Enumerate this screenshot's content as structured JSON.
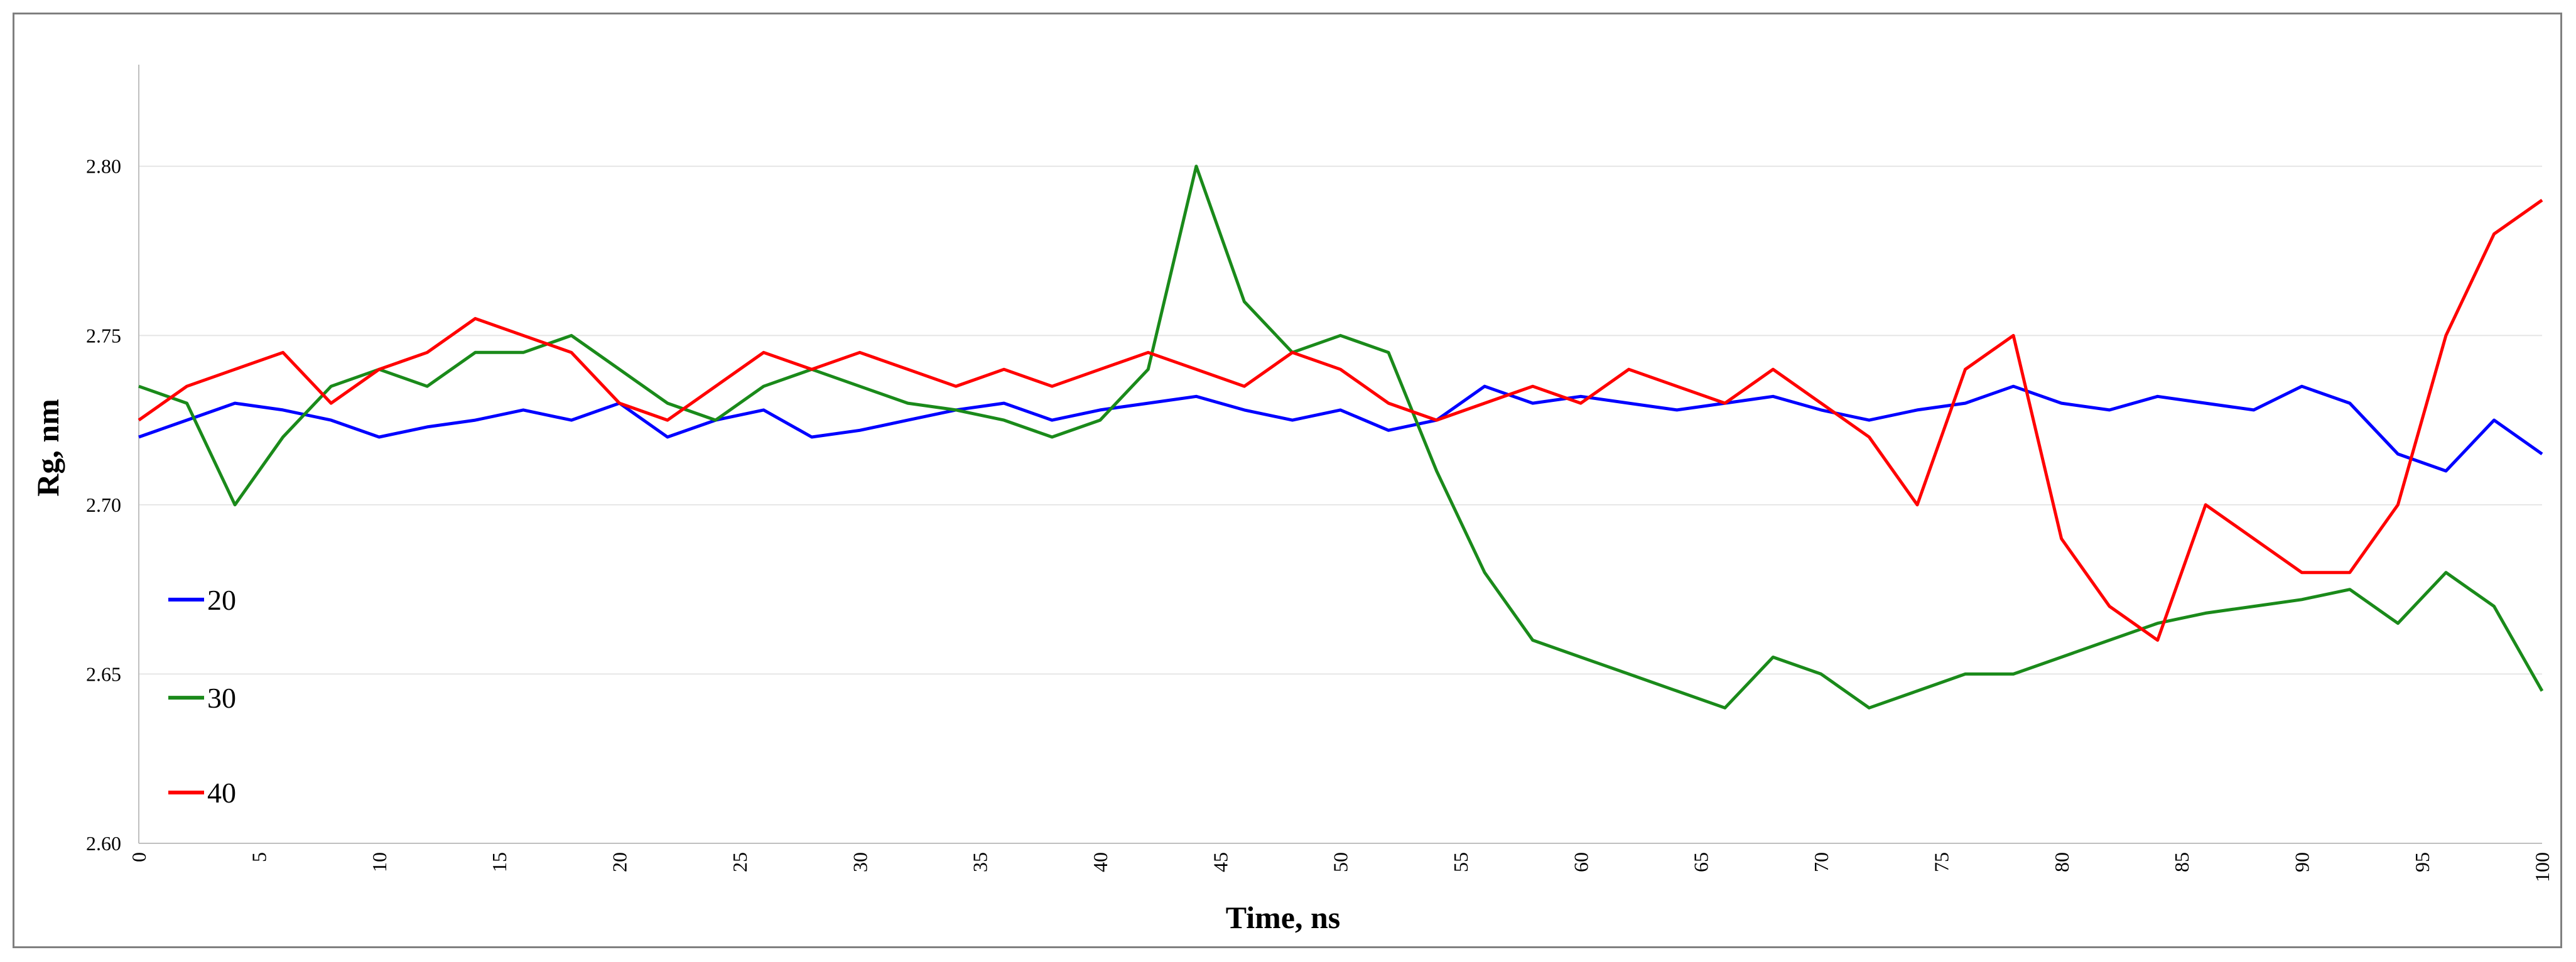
{
  "chart_data": {
    "type": "line",
    "xlabel": "Time, ns",
    "ylabel": "Rg, nm",
    "xlim": [
      0,
      100
    ],
    "ylim": [
      2.6,
      2.83
    ],
    "x_ticks": [
      0,
      5,
      10,
      15,
      20,
      25,
      30,
      35,
      40,
      45,
      50,
      55,
      60,
      65,
      70,
      75,
      80,
      85,
      90,
      95,
      100
    ],
    "x_tick_labels": [
      "0",
      "5",
      "10",
      "15",
      "20",
      "25",
      "30",
      "35",
      "40",
      "45",
      "50",
      "55",
      "60",
      "65",
      "70",
      "75",
      "80",
      "85",
      "90",
      "95",
      "100"
    ],
    "y_ticks": [
      2.6,
      2.65,
      2.7,
      2.75,
      2.8
    ],
    "y_tick_labels": [
      "2.60",
      "2.65",
      "2.70",
      "2.75",
      "2.80"
    ],
    "grid": "horizontal",
    "legend_position": "left",
    "colors": {
      "20": "#0000ff",
      "30": "#1a8a1a",
      "40": "#ff0000"
    },
    "series": [
      {
        "name": "20",
        "color": "#0000ff",
        "x": [
          0,
          2,
          4,
          6,
          8,
          10,
          12,
          14,
          16,
          18,
          20,
          22,
          24,
          26,
          28,
          30,
          32,
          34,
          36,
          38,
          40,
          42,
          44,
          46,
          48,
          50,
          52,
          54,
          56,
          58,
          60,
          62,
          64,
          66,
          68,
          70,
          72,
          74,
          76,
          78,
          80,
          82,
          84,
          86,
          88,
          90,
          92,
          94,
          96,
          98,
          100
        ],
        "y": [
          2.72,
          2.725,
          2.73,
          2.728,
          2.725,
          2.72,
          2.723,
          2.725,
          2.728,
          2.725,
          2.73,
          2.72,
          2.725,
          2.728,
          2.72,
          2.722,
          2.725,
          2.728,
          2.73,
          2.725,
          2.728,
          2.73,
          2.732,
          2.728,
          2.725,
          2.728,
          2.722,
          2.725,
          2.735,
          2.73,
          2.732,
          2.73,
          2.728,
          2.73,
          2.732,
          2.728,
          2.725,
          2.728,
          2.73,
          2.735,
          2.73,
          2.728,
          2.732,
          2.73,
          2.728,
          2.735,
          2.73,
          2.715,
          2.71,
          2.725,
          2.715
        ]
      },
      {
        "name": "30",
        "color": "#1a8a1a",
        "x": [
          0,
          2,
          4,
          6,
          8,
          10,
          12,
          14,
          16,
          18,
          20,
          22,
          24,
          26,
          28,
          30,
          32,
          34,
          36,
          38,
          40,
          42,
          44,
          46,
          48,
          50,
          52,
          54,
          56,
          58,
          60,
          62,
          64,
          66,
          68,
          70,
          72,
          74,
          76,
          78,
          80,
          82,
          84,
          86,
          88,
          90,
          92,
          94,
          96,
          98,
          100
        ],
        "y": [
          2.735,
          2.73,
          2.7,
          2.72,
          2.735,
          2.74,
          2.735,
          2.745,
          2.745,
          2.75,
          2.74,
          2.73,
          2.725,
          2.735,
          2.74,
          2.735,
          2.73,
          2.728,
          2.725,
          2.72,
          2.725,
          2.74,
          2.8,
          2.76,
          2.745,
          2.75,
          2.745,
          2.71,
          2.68,
          2.66,
          2.655,
          2.65,
          2.645,
          2.64,
          2.655,
          2.65,
          2.64,
          2.645,
          2.65,
          2.65,
          2.655,
          2.66,
          2.665,
          2.668,
          2.67,
          2.672,
          2.675,
          2.665,
          2.68,
          2.67,
          2.645
        ]
      },
      {
        "name": "40",
        "color": "#ff0000",
        "x": [
          0,
          2,
          4,
          6,
          8,
          10,
          12,
          14,
          16,
          18,
          20,
          22,
          24,
          26,
          28,
          30,
          32,
          34,
          36,
          38,
          40,
          42,
          44,
          46,
          48,
          50,
          52,
          54,
          56,
          58,
          60,
          62,
          64,
          66,
          68,
          70,
          72,
          74,
          76,
          78,
          80,
          82,
          84,
          86,
          88,
          90,
          92,
          94,
          96,
          98,
          100
        ],
        "y": [
          2.725,
          2.735,
          2.74,
          2.745,
          2.73,
          2.74,
          2.745,
          2.755,
          2.75,
          2.745,
          2.73,
          2.725,
          2.735,
          2.745,
          2.74,
          2.745,
          2.74,
          2.735,
          2.74,
          2.735,
          2.74,
          2.745,
          2.74,
          2.735,
          2.745,
          2.74,
          2.73,
          2.725,
          2.73,
          2.735,
          2.73,
          2.74,
          2.735,
          2.73,
          2.74,
          2.73,
          2.72,
          2.7,
          2.74,
          2.75,
          2.69,
          2.67,
          2.66,
          2.7,
          2.69,
          2.68,
          2.68,
          2.7,
          2.75,
          2.78,
          2.79
        ]
      }
    ]
  }
}
